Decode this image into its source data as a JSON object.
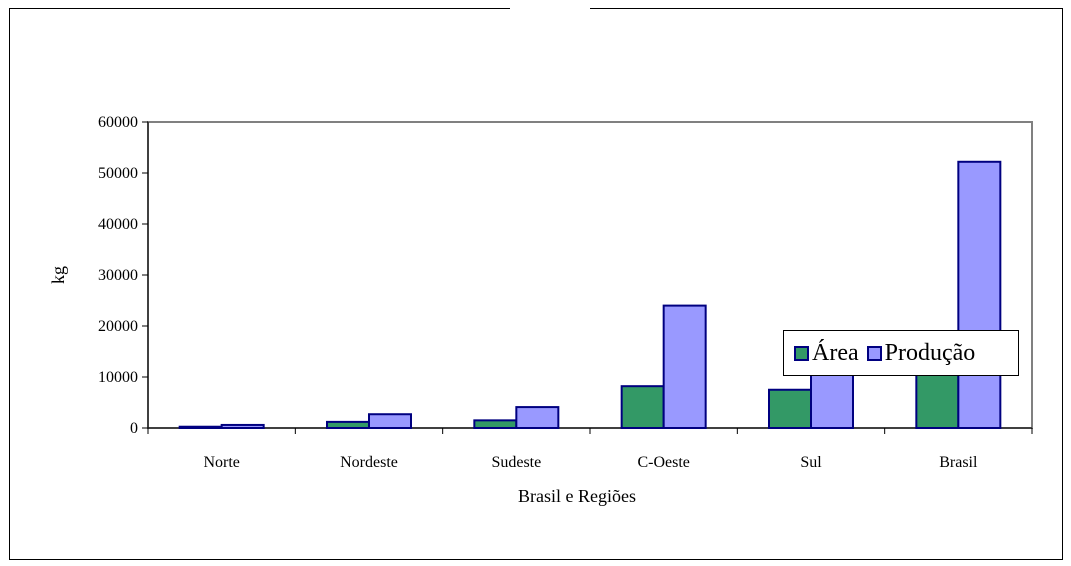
{
  "chart_data": {
    "type": "bar",
    "title": "",
    "xlabel": "Brasil e Regiões",
    "ylabel": "kg",
    "ylim": [
      0,
      60000
    ],
    "yticks": [
      0,
      10000,
      20000,
      30000,
      40000,
      50000,
      60000
    ],
    "categories": [
      "Norte",
      "Nordeste",
      "Sudeste",
      "C-Oeste",
      "Sul",
      "Brasil"
    ],
    "series": [
      {
        "name": "Área",
        "color": "#339966",
        "values": [
          250,
          1200,
          1500,
          8200,
          7500,
          18500
        ]
      },
      {
        "name": "Produção",
        "color": "#9999FF",
        "values": [
          600,
          2700,
          4100,
          24000,
          15600,
          52200
        ]
      }
    ],
    "grid": false,
    "legend": "bottom-right"
  }
}
